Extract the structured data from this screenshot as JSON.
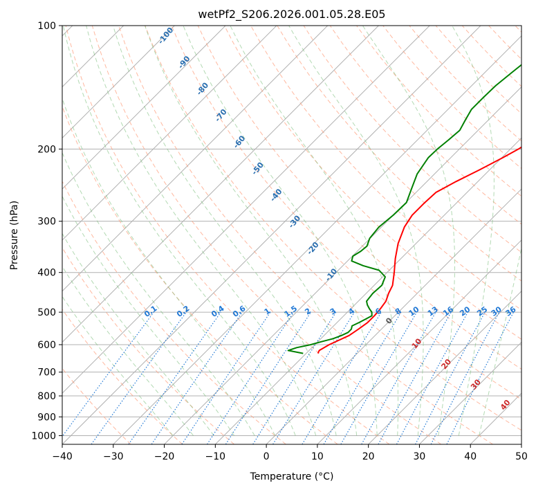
{
  "chart_data": {
    "type": "line",
    "title": "wetPf2_S206.2026.001.05.28.E05",
    "xlabel": "Temperature (°C)",
    "ylabel": "Pressure (hPa)",
    "xlim": [
      -40,
      50
    ],
    "ylim": [
      1050,
      100
    ],
    "x_ticks": [
      -40,
      -30,
      -20,
      -10,
      0,
      10,
      20,
      30,
      40,
      50
    ],
    "x_tick_labels": [
      "−40",
      "−30",
      "−20",
      "−10",
      "0",
      "10",
      "20",
      "30",
      "40",
      "50"
    ],
    "y_ticks": [
      100,
      200,
      300,
      400,
      500,
      600,
      700,
      800,
      900,
      1000
    ],
    "y_tick_labels": [
      "100",
      "200",
      "300",
      "400",
      "500",
      "600",
      "700",
      "800",
      "900",
      "1000"
    ],
    "grid": true,
    "colors": {
      "temperature": "#ff0000",
      "dewpoint": "#008000",
      "dry_adiabat": "#ff9a76",
      "moist_adiabat": "#7fbf7f",
      "mixing_ratio": "#1f77d4",
      "isotherm": "#7a7a7a",
      "grid": "#b0b0b0"
    },
    "series": [
      {
        "name": "Temperature",
        "pressure": [
          630,
          620,
          600,
          570,
          550,
          530,
          510,
          490,
          470,
          450,
          430,
          400,
          370,
          340,
          310,
          290,
          270,
          255,
          240,
          225,
          210,
          200,
          185,
          170,
          160,
          150,
          140,
          130,
          120,
          110,
          100
        ],
        "values": [
          -7.7,
          -8.0,
          -7.2,
          -5.1,
          -4.5,
          -4.0,
          -4.0,
          -4.2,
          -4.6,
          -5.6,
          -6.4,
          -8.6,
          -11.1,
          -13.5,
          -15.5,
          -16.3,
          -16.3,
          -16.1,
          -14.3,
          -12.0,
          -9.8,
          -8.4,
          -6.9,
          -5.6,
          -5.2,
          -4.8,
          -4.8,
          -4.5,
          -4.4,
          -4.2,
          -4.0
        ]
      },
      {
        "name": "Dewpoint",
        "pressure": [
          630,
          620,
          610,
          600,
          590,
          580,
          570,
          560,
          550,
          540,
          530,
          520,
          510,
          500,
          490,
          480,
          470,
          450,
          430,
          410,
          395,
          385,
          375,
          365,
          355,
          345,
          330,
          310,
          290,
          270,
          250,
          230,
          210,
          200,
          190,
          180,
          170,
          160,
          150,
          140,
          130,
          120,
          110,
          100
        ],
        "values": [
          -10.6,
          -14.1,
          -13.0,
          -10.8,
          -9.3,
          -7.6,
          -6.6,
          -5.9,
          -5.9,
          -6.4,
          -5.7,
          -5.1,
          -4.5,
          -5.2,
          -6.4,
          -7.5,
          -8.4,
          -8.7,
          -8.5,
          -9.5,
          -12.0,
          -16.0,
          -19.2,
          -19.9,
          -19.3,
          -19.1,
          -20.1,
          -20.5,
          -20.0,
          -19.9,
          -21.6,
          -23.4,
          -24.4,
          -24.3,
          -23.9,
          -23.6,
          -24.5,
          -25.4,
          -25.4,
          -25.3,
          -24.7,
          -24.0,
          -23.2,
          -22.5
        ]
      }
    ],
    "dry_adiabat_labels": [
      "-100",
      "-90",
      "-80",
      "-70",
      "-60",
      "-50",
      "-40",
      "-30",
      "-20",
      "-10",
      "0",
      "10",
      "20",
      "30",
      "40"
    ],
    "mixing_ratio_labels": [
      "0.1",
      "0.2",
      "0.4",
      "0.6",
      "1",
      "1.5",
      "2",
      "3",
      "4",
      "6",
      "8",
      "10",
      "13",
      "16",
      "20",
      "25",
      "30",
      "36"
    ]
  }
}
